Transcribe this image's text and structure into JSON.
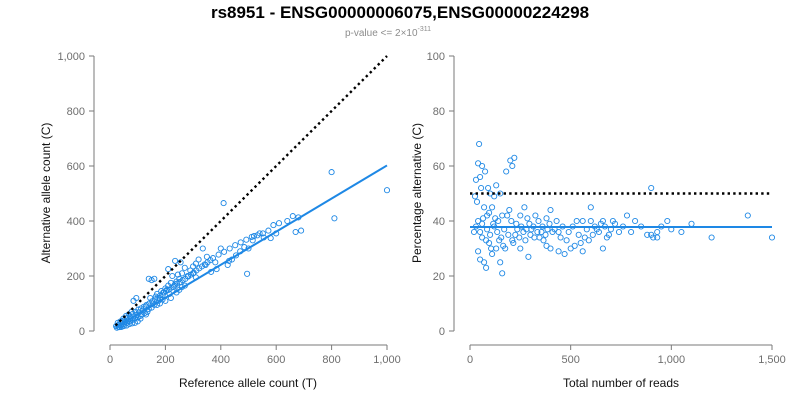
{
  "figure": {
    "title": "rs8951 - ENSG00000006075,ENSG00000224298",
    "subtitle_prefix": "p-value <= 2×10",
    "subtitle_exponent": "-311"
  },
  "chart_data": [
    {
      "type": "scatter",
      "xlabel": "Reference allele count (T)",
      "ylabel": "Alternative allele count (C)",
      "xlim": [
        0,
        1000
      ],
      "ylim": [
        0,
        1000
      ],
      "xticks": [
        "0",
        "200",
        "400",
        "600",
        "800",
        "1,000"
      ],
      "yticks": [
        "0",
        "200",
        "400",
        "600",
        "800",
        "1,000"
      ],
      "xtick_values": [
        0,
        200,
        400,
        600,
        800,
        1000
      ],
      "ytick_values": [
        0,
        200,
        400,
        600,
        800,
        1000
      ],
      "grid": false,
      "marker_color": "#1e88e5",
      "lines": [
        {
          "kind": "fit",
          "style": "solid",
          "color": "#1e88e5",
          "x": [
            20,
            1000
          ],
          "y": [
            12,
            602
          ]
        },
        {
          "kind": "reference",
          "style": "dotted",
          "color": "#000000",
          "x": [
            20,
            1000
          ],
          "y": [
            20,
            1000
          ]
        }
      ],
      "points": [
        [
          800,
          578
        ],
        [
          1000,
          512
        ],
        [
          810,
          410
        ],
        [
          410,
          465
        ],
        [
          680,
          413
        ],
        [
          660,
          418
        ],
        [
          640,
          400
        ],
        [
          690,
          365
        ],
        [
          670,
          360
        ],
        [
          610,
          392
        ],
        [
          590,
          385
        ],
        [
          580,
          338
        ],
        [
          540,
          355
        ],
        [
          520,
          345
        ],
        [
          500,
          300
        ],
        [
          495,
          208
        ],
        [
          470,
          290
        ],
        [
          440,
          260
        ],
        [
          430,
          255
        ],
        [
          400,
          300
        ],
        [
          380,
          250
        ],
        [
          350,
          270
        ],
        [
          335,
          300
        ],
        [
          320,
          260
        ],
        [
          310,
          245
        ],
        [
          300,
          235
        ],
        [
          290,
          220
        ],
        [
          280,
          200
        ],
        [
          270,
          230
        ],
        [
          260,
          210
        ],
        [
          250,
          190
        ],
        [
          245,
          205
        ],
        [
          240,
          180
        ],
        [
          235,
          170
        ],
        [
          230,
          160
        ],
        [
          225,
          200
        ],
        [
          220,
          175
        ],
        [
          210,
          165
        ],
        [
          205,
          150
        ],
        [
          200,
          155
        ],
        [
          195,
          140
        ],
        [
          190,
          130
        ],
        [
          185,
          145
        ],
        [
          180,
          120
        ],
        [
          175,
          110
        ],
        [
          170,
          135
        ],
        [
          165,
          125
        ],
        [
          160,
          95
        ],
        [
          155,
          100
        ],
        [
          150,
          85
        ],
        [
          145,
          120
        ],
        [
          140,
          80
        ],
        [
          135,
          70
        ],
        [
          130,
          90
        ],
        [
          125,
          65
        ],
        [
          120,
          75
        ],
        [
          115,
          60
        ],
        [
          110,
          55
        ],
        [
          105,
          68
        ],
        [
          100,
          50
        ],
        [
          95,
          58
        ],
        [
          90,
          45
        ],
        [
          85,
          52
        ],
        [
          80,
          40
        ],
        [
          75,
          48
        ],
        [
          70,
          35
        ],
        [
          65,
          38
        ],
        [
          60,
          30
        ],
        [
          55,
          33
        ],
        [
          50,
          25
        ],
        [
          45,
          28
        ],
        [
          40,
          20
        ],
        [
          35,
          22
        ],
        [
          30,
          15
        ],
        [
          25,
          12
        ],
        [
          22,
          18
        ],
        [
          28,
          30
        ],
        [
          38,
          35
        ],
        [
          48,
          45
        ],
        [
          58,
          55
        ],
        [
          68,
          60
        ],
        [
          78,
          70
        ],
        [
          85,
          110
        ],
        [
          95,
          120
        ],
        [
          140,
          190
        ],
        [
          150,
          185
        ],
        [
          160,
          190
        ],
        [
          210,
          225
        ],
        [
          235,
          255
        ],
        [
          255,
          250
        ],
        [
          345,
          240
        ],
        [
          365,
          215
        ],
        [
          385,
          225
        ],
        [
          425,
          240
        ],
        [
          455,
          275
        ],
        [
          485,
          305
        ],
        [
          515,
          330
        ],
        [
          555,
          340
        ],
        [
          600,
          355
        ],
        [
          300,
          210
        ],
        [
          310,
          195
        ],
        [
          260,
          160
        ],
        [
          270,
          165
        ],
        [
          240,
          140
        ],
        [
          250,
          150
        ],
        [
          215,
          135
        ],
        [
          220,
          120
        ],
        [
          180,
          100
        ],
        [
          190,
          115
        ],
        [
          200,
          110
        ],
        [
          170,
          95
        ],
        [
          130,
          60
        ],
        [
          110,
          45
        ],
        [
          100,
          35
        ],
        [
          90,
          30
        ],
        [
          80,
          28
        ],
        [
          70,
          25
        ],
        [
          60,
          20
        ],
        [
          50,
          18
        ],
        [
          42,
          15
        ],
        [
          35,
          14
        ],
        [
          32,
          24
        ],
        [
          44,
          36
        ],
        [
          52,
          40
        ],
        [
          62,
          48
        ],
        [
          72,
          52
        ],
        [
          82,
          62
        ],
        [
          92,
          70
        ],
        [
          102,
          78
        ],
        [
          112,
          82
        ],
        [
          122,
          88
        ],
        [
          132,
          95
        ],
        [
          142,
          100
        ],
        [
          152,
          108
        ],
        [
          162,
          115
        ],
        [
          172,
          120
        ],
        [
          182,
          130
        ],
        [
          192,
          140
        ],
        [
          202,
          145
        ],
        [
          212,
          150
        ],
        [
          222,
          158
        ],
        [
          232,
          165
        ],
        [
          242,
          172
        ],
        [
          252,
          178
        ],
        [
          262,
          185
        ],
        [
          272,
          190
        ],
        [
          282,
          198
        ],
        [
          292,
          205
        ],
        [
          302,
          212
        ],
        [
          312,
          220
        ],
        [
          322,
          228
        ],
        [
          332,
          235
        ],
        [
          342,
          242
        ],
        [
          352,
          250
        ],
        [
          362,
          258
        ],
        [
          372,
          265
        ],
        [
          392,
          278
        ],
        [
          412,
          288
        ],
        [
          432,
          300
        ],
        [
          452,
          312
        ],
        [
          472,
          322
        ],
        [
          492,
          332
        ],
        [
          512,
          342
        ],
        [
          532,
          348
        ],
        [
          552,
          355
        ],
        [
          572,
          365
        ]
      ]
    },
    {
      "type": "scatter",
      "xlabel": "Total number of reads",
      "ylabel": "Percentage alternative (C)",
      "xlim": [
        0,
        1500
      ],
      "ylim": [
        0,
        100
      ],
      "xticks": [
        "0",
        "500",
        "1,000",
        "1,500"
      ],
      "yticks": [
        "0",
        "20",
        "40",
        "60",
        "80",
        "100"
      ],
      "xtick_values": [
        0,
        500,
        1000,
        1500
      ],
      "ytick_values": [
        0,
        20,
        40,
        60,
        80,
        100
      ],
      "grid": false,
      "marker_color": "#1e88e5",
      "lines": [
        {
          "kind": "fit",
          "style": "solid",
          "color": "#1e88e5",
          "x": [
            0,
            1500
          ],
          "y": [
            37.8,
            37.8
          ]
        },
        {
          "kind": "reference",
          "style": "dotted",
          "color": "#000000",
          "x": [
            0,
            1500
          ],
          "y": [
            50,
            50
          ]
        }
      ],
      "points": [
        [
          45,
          68
        ],
        [
          40,
          61
        ],
        [
          60,
          60
        ],
        [
          75,
          58
        ],
        [
          30,
          55
        ],
        [
          50,
          56
        ],
        [
          55,
          52
        ],
        [
          25,
          49
        ],
        [
          35,
          47
        ],
        [
          70,
          45
        ],
        [
          90,
          52
        ],
        [
          100,
          50
        ],
        [
          120,
          49
        ],
        [
          200,
          62
        ],
        [
          210,
          60
        ],
        [
          220,
          63
        ],
        [
          180,
          58
        ],
        [
          130,
          53
        ],
        [
          150,
          50
        ],
        [
          110,
          45
        ],
        [
          95,
          43
        ],
        [
          85,
          42
        ],
        [
          65,
          41
        ],
        [
          40,
          40
        ],
        [
          30,
          38
        ],
        [
          20,
          36
        ],
        [
          50,
          36
        ],
        [
          60,
          34
        ],
        [
          80,
          33
        ],
        [
          100,
          35
        ],
        [
          120,
          38
        ],
        [
          140,
          40
        ],
        [
          160,
          42
        ],
        [
          170,
          37
        ],
        [
          190,
          35
        ],
        [
          210,
          33
        ],
        [
          230,
          39
        ],
        [
          250,
          42
        ],
        [
          270,
          45
        ],
        [
          280,
          37
        ],
        [
          300,
          35
        ],
        [
          320,
          34
        ],
        [
          340,
          40
        ],
        [
          360,
          38
        ],
        [
          380,
          41
        ],
        [
          400,
          44
        ],
        [
          420,
          37
        ],
        [
          440,
          36
        ],
        [
          460,
          38
        ],
        [
          480,
          33
        ],
        [
          500,
          30
        ],
        [
          520,
          31
        ],
        [
          540,
          35
        ],
        [
          560,
          40
        ],
        [
          580,
          37
        ],
        [
          600,
          45
        ],
        [
          620,
          38
        ],
        [
          640,
          36
        ],
        [
          660,
          40
        ],
        [
          680,
          34
        ],
        [
          700,
          37
        ],
        [
          720,
          39
        ],
        [
          740,
          36
        ],
        [
          760,
          38
        ],
        [
          780,
          42
        ],
        [
          800,
          36
        ],
        [
          820,
          40
        ],
        [
          850,
          38
        ],
        [
          880,
          35
        ],
        [
          900,
          52
        ],
        [
          910,
          34
        ],
        [
          930,
          36
        ],
        [
          950,
          38
        ],
        [
          980,
          40
        ],
        [
          1000,
          37
        ],
        [
          1050,
          36
        ],
        [
          1100,
          39
        ],
        [
          1200,
          34
        ],
        [
          1380,
          42
        ],
        [
          1500,
          34
        ],
        [
          70,
          25
        ],
        [
          80,
          23
        ],
        [
          150,
          25
        ],
        [
          160,
          21
        ],
        [
          110,
          28
        ],
        [
          130,
          30
        ],
        [
          250,
          30
        ],
        [
          290,
          27
        ],
        [
          380,
          31
        ],
        [
          400,
          30
        ],
        [
          440,
          29
        ],
        [
          470,
          28
        ],
        [
          550,
          32
        ],
        [
          560,
          29
        ],
        [
          900,
          35
        ],
        [
          930,
          34
        ],
        [
          660,
          30
        ],
        [
          600,
          40
        ],
        [
          40,
          29
        ],
        [
          50,
          26
        ],
        [
          60,
          39
        ],
        [
          85,
          37
        ],
        [
          95,
          32
        ],
        [
          105,
          30
        ],
        [
          115,
          39
        ],
        [
          125,
          41
        ],
        [
          135,
          36
        ],
        [
          145,
          33
        ],
        [
          155,
          34
        ],
        [
          165,
          31
        ],
        [
          175,
          30
        ],
        [
          185,
          42
        ],
        [
          195,
          44
        ],
        [
          205,
          40
        ],
        [
          215,
          32
        ],
        [
          225,
          35
        ],
        [
          235,
          37
        ],
        [
          245,
          34
        ],
        [
          255,
          38
        ],
        [
          265,
          36
        ],
        [
          275,
          33
        ],
        [
          285,
          41
        ],
        [
          295,
          39
        ],
        [
          305,
          37
        ],
        [
          315,
          38
        ],
        [
          325,
          42
        ],
        [
          335,
          36
        ],
        [
          345,
          34
        ],
        [
          355,
          36
        ],
        [
          365,
          33
        ],
        [
          375,
          35
        ],
        [
          385,
          37
        ],
        [
          395,
          39
        ],
        [
          410,
          36
        ],
        [
          430,
          40
        ],
        [
          450,
          34
        ],
        [
          490,
          36
        ],
        [
          510,
          38
        ],
        [
          530,
          40
        ],
        [
          570,
          34
        ],
        [
          590,
          33
        ],
        [
          610,
          35
        ],
        [
          630,
          37
        ],
        [
          650,
          39
        ],
        [
          670,
          38
        ],
        [
          690,
          35
        ],
        [
          710,
          40
        ]
      ]
    }
  ]
}
